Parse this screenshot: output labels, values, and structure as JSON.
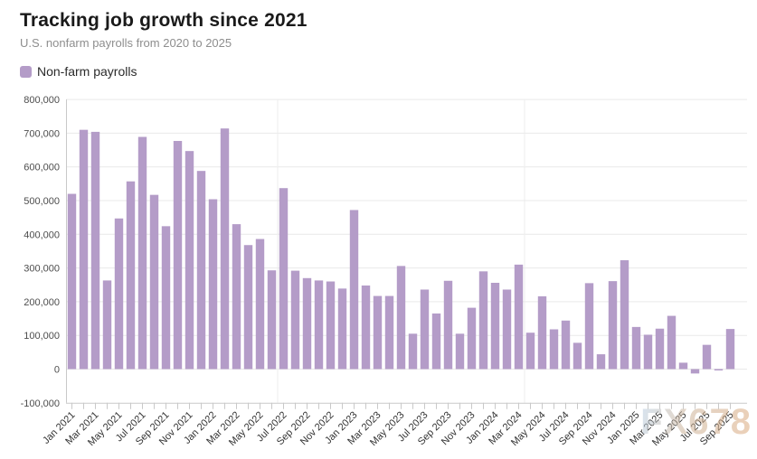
{
  "header": {
    "title": "Tracking job growth since 2021",
    "subtitle": "U.S. nonfarm payrolls from 2020 to 2025"
  },
  "legend": {
    "label": "Non-farm payrolls",
    "swatch_color": "#b49cc8"
  },
  "watermark": "FX678",
  "chart_data": {
    "type": "bar",
    "title": "Tracking job growth since 2021",
    "categories": [
      "Jan 2021",
      "Feb 2021",
      "Mar 2021",
      "Apr 2021",
      "May 2021",
      "Jun 2021",
      "Jul 2021",
      "Aug 2021",
      "Sep 2021",
      "Oct 2021",
      "Nov 2021",
      "Dec 2021",
      "Jan 2022",
      "Feb 2022",
      "Mar 2022",
      "Apr 2022",
      "May 2022",
      "Jun 2022",
      "Jul 2022",
      "Aug 2022",
      "Sep 2022",
      "Oct 2022",
      "Nov 2022",
      "Dec 2022",
      "Jan 2023",
      "Feb 2023",
      "Mar 2023",
      "Apr 2023",
      "May 2023",
      "Jun 2023",
      "Jul 2023",
      "Aug 2023",
      "Sep 2023",
      "Oct 2023",
      "Nov 2023",
      "Dec 2023",
      "Jan 2024",
      "Feb 2024",
      "Mar 2024",
      "Apr 2024",
      "May 2024",
      "Jun 2024",
      "Jul 2024",
      "Aug 2024",
      "Sep 2024",
      "Oct 2024",
      "Nov 2024",
      "Dec 2024",
      "Jan 2025",
      "Feb 2025",
      "Mar 2025",
      "Apr 2025",
      "May 2025",
      "Jun 2025",
      "Jul 2025",
      "Aug 2025",
      "Sep 2025"
    ],
    "series": [
      {
        "name": "Non-farm payrolls",
        "color": "#b49cc8",
        "values": [
          520000,
          710000,
          704000,
          263000,
          447000,
          557000,
          689000,
          517000,
          424000,
          677000,
          647000,
          588000,
          504000,
          714000,
          430000,
          368000,
          386000,
          293000,
          537000,
          292000,
          270000,
          263000,
          260000,
          239000,
          472000,
          248000,
          217000,
          217000,
          306000,
          105000,
          236000,
          165000,
          262000,
          105000,
          182000,
          290000,
          256000,
          236000,
          310000,
          108000,
          216000,
          118000,
          144000,
          78000,
          255000,
          44000,
          261000,
          323000,
          125000,
          102000,
          120000,
          158000,
          19000,
          -13000,
          72000,
          -4000,
          119000
        ]
      }
    ],
    "ylim": [
      -100000,
      800000
    ],
    "y_tick_interval": 100000,
    "y_tick_labels": [
      "800,000",
      "700,000",
      "600,000",
      "500,000",
      "400,000",
      "300,000",
      "200,000",
      "100,000",
      "0",
      "-100,000"
    ],
    "x_label_interval": 2,
    "x_label_rotation": -45,
    "grid": "horizontal",
    "legend_position": "top-left",
    "x_gridline_before_categories": [
      "Jul 2022",
      "Apr 2024"
    ]
  }
}
